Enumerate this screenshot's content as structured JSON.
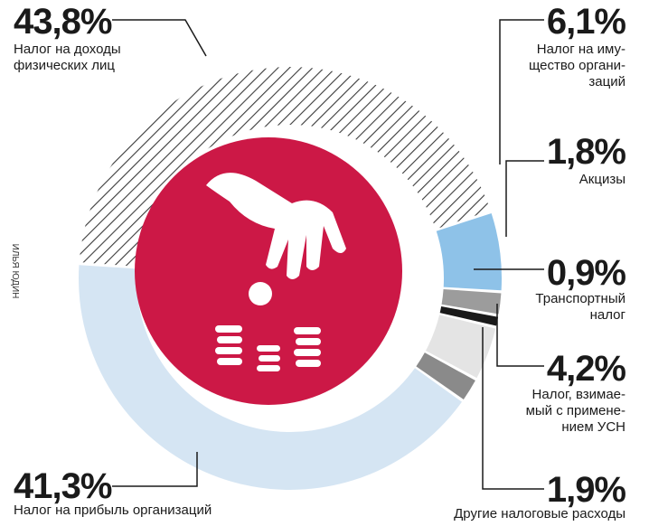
{
  "chart_data": {
    "type": "donut",
    "credit": "ИЛЬЯ ЮДИН",
    "categories": [
      "Налог на доходы\nфизических лиц",
      "Налог на иму-\nщество органи-\nзаций",
      "Акцизы",
      "Транспортный\nналог",
      "Налог, взимае-\nмый с примене-\nнием УСН",
      "Другие налоговые расходы",
      "Налог на прибыль организаций"
    ],
    "values": [
      43.8,
      6.1,
      1.8,
      0.9,
      4.2,
      1.9,
      41.3
    ],
    "value_labels": [
      "43,8%",
      "6,1%",
      "1,8%",
      "0,9%",
      "4,2%",
      "1,9%",
      "41,3%"
    ],
    "colors": [
      "#3a3a3a",
      "#8ec2e8",
      "#9c9c9c",
      "#1a1a1a",
      "#e4e4e4",
      "#8a8a8a",
      "#d5e5f3"
    ],
    "hatched": [
      true,
      false,
      false,
      false,
      false,
      false,
      false
    ]
  }
}
